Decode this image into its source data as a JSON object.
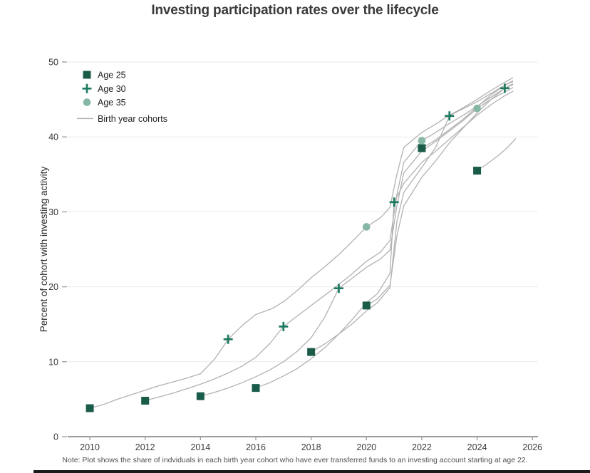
{
  "title": "Investing participation rates over the lifecycle",
  "note": "Note: Plot shows the share of indviduals in each birth year cohort who have ever transferred funds to an investing account starting at age 22.",
  "colors": {
    "age25": "#1a5c4a",
    "age30": "#1d7a61",
    "age35": "#86b7a4",
    "cohort_line": "#b3b1b1",
    "axis": "#9c9c9c",
    "grid": "#ebebeb",
    "tick_text": "#3c3c3c",
    "axis_label_text": "#2b2b2b"
  },
  "legend": {
    "items": [
      {
        "label": "Age 25",
        "marker": "square"
      },
      {
        "label": "Age 30",
        "marker": "plus"
      },
      {
        "label": "Age 35",
        "marker": "circle"
      },
      {
        "label": "Birth year cohorts",
        "marker": "line"
      }
    ]
  },
  "chart_data": {
    "type": "line",
    "title": "Investing participation rates over the lifecycle",
    "xlabel": "",
    "ylabel": "Percent of cohort with investing activity",
    "xlim": [
      2009.2,
      2026.2
    ],
    "ylim": [
      0,
      50
    ],
    "x_ticks": [
      2010,
      2012,
      2014,
      2016,
      2018,
      2020,
      2022,
      2024,
      2026
    ],
    "y_ticks": [
      0,
      10,
      20,
      30,
      40,
      50
    ],
    "grid": "horizontal",
    "legend_position": "top-left",
    "cohort_lines": [
      {
        "name": "cohort-1985",
        "points": [
          [
            2010,
            3.8
          ],
          [
            2010.5,
            4.3
          ],
          [
            2011,
            5.0
          ],
          [
            2011.5,
            5.6
          ],
          [
            2012,
            6.2
          ],
          [
            2012.5,
            6.8
          ],
          [
            2013,
            7.3
          ],
          [
            2013.5,
            7.8
          ],
          [
            2014,
            8.4
          ],
          [
            2014.5,
            10.3
          ],
          [
            2015,
            13.0
          ],
          [
            2015.5,
            14.8
          ],
          [
            2016,
            16.3
          ],
          [
            2016.6,
            17.1
          ],
          [
            2017,
            18.0
          ],
          [
            2017.5,
            19.5
          ],
          [
            2018,
            21.2
          ],
          [
            2018.5,
            22.7
          ],
          [
            2019,
            24.3
          ],
          [
            2019.5,
            26.1
          ],
          [
            2020,
            28.0
          ],
          [
            2020.5,
            29.2
          ],
          [
            2020.85,
            30.6
          ],
          [
            2021.1,
            35.0
          ],
          [
            2021.35,
            38.6
          ],
          [
            2022,
            40.6
          ],
          [
            2022.5,
            41.7
          ],
          [
            2023,
            42.9
          ],
          [
            2023.5,
            43.9
          ],
          [
            2024,
            45.0
          ],
          [
            2024.5,
            46.2
          ],
          [
            2025,
            47.3
          ],
          [
            2025.3,
            47.9
          ]
        ]
      },
      {
        "name": "cohort-1987",
        "points": [
          [
            2012,
            4.8
          ],
          [
            2012.5,
            5.3
          ],
          [
            2013,
            5.8
          ],
          [
            2013.5,
            6.4
          ],
          [
            2014,
            7.0
          ],
          [
            2014.5,
            7.7
          ],
          [
            2015,
            8.5
          ],
          [
            2015.5,
            9.4
          ],
          [
            2016,
            10.6
          ],
          [
            2016.5,
            12.4
          ],
          [
            2017,
            14.7
          ],
          [
            2017.5,
            16.1
          ],
          [
            2018,
            17.5
          ],
          [
            2018.5,
            18.9
          ],
          [
            2019,
            20.3
          ],
          [
            2019.5,
            21.8
          ],
          [
            2020,
            23.4
          ],
          [
            2020.5,
            24.6
          ],
          [
            2020.85,
            26.2
          ],
          [
            2021.1,
            32.3
          ],
          [
            2021.35,
            36.6
          ],
          [
            2022,
            39.5
          ],
          [
            2022.5,
            40.6
          ],
          [
            2023,
            41.8
          ],
          [
            2023.5,
            42.9
          ],
          [
            2024,
            44.1
          ],
          [
            2024.5,
            45.3
          ],
          [
            2025,
            46.5
          ],
          [
            2025.3,
            47.1
          ]
        ]
      },
      {
        "name": "cohort-1989",
        "points": [
          [
            2014,
            5.4
          ],
          [
            2014.5,
            5.9
          ],
          [
            2015,
            6.5
          ],
          [
            2015.5,
            7.2
          ],
          [
            2016,
            8.0
          ],
          [
            2016.5,
            8.9
          ],
          [
            2017,
            10.0
          ],
          [
            2017.5,
            11.4
          ],
          [
            2018,
            13.2
          ],
          [
            2018.5,
            16.0
          ],
          [
            2019,
            19.8
          ],
          [
            2019.5,
            21.2
          ],
          [
            2020,
            22.6
          ],
          [
            2020.5,
            23.7
          ],
          [
            2020.85,
            24.9
          ],
          [
            2021.1,
            30.8
          ],
          [
            2021.35,
            35.2
          ],
          [
            2022,
            38.1
          ],
          [
            2022.5,
            39.4
          ],
          [
            2023,
            40.8
          ],
          [
            2023.5,
            42.2
          ],
          [
            2024,
            43.8
          ],
          [
            2024.5,
            45.0
          ],
          [
            2025,
            46.0
          ],
          [
            2025.3,
            46.6
          ]
        ]
      },
      {
        "name": "cohort-1991",
        "points": [
          [
            2016,
            6.5
          ],
          [
            2016.5,
            7.2
          ],
          [
            2017,
            8.1
          ],
          [
            2017.5,
            9.1
          ],
          [
            2018,
            10.4
          ],
          [
            2018.5,
            11.9
          ],
          [
            2019,
            13.7
          ],
          [
            2019.5,
            15.7
          ],
          [
            2020,
            17.9
          ],
          [
            2020.4,
            19.1
          ],
          [
            2020.85,
            21.8
          ],
          [
            2021,
            31.3
          ],
          [
            2021.35,
            33.8
          ],
          [
            2022,
            36.6
          ],
          [
            2022.5,
            38.1
          ],
          [
            2023,
            39.7
          ],
          [
            2023.5,
            41.3
          ],
          [
            2024,
            42.9
          ],
          [
            2024.5,
            44.3
          ],
          [
            2025,
            45.5
          ],
          [
            2025.3,
            46.1
          ]
        ]
      },
      {
        "name": "cohort-1993",
        "points": [
          [
            2018,
            11.3
          ],
          [
            2018.5,
            12.4
          ],
          [
            2019,
            13.7
          ],
          [
            2019.5,
            15.1
          ],
          [
            2020,
            16.8
          ],
          [
            2020.4,
            17.9
          ],
          [
            2020.85,
            19.9
          ],
          [
            2021.1,
            28.7
          ],
          [
            2021.35,
            32.6
          ],
          [
            2022,
            35.9
          ],
          [
            2022.5,
            38.6
          ],
          [
            2023,
            42.8
          ],
          [
            2023.3,
            43.4
          ],
          [
            2024,
            44.7
          ],
          [
            2024.5,
            45.8
          ],
          [
            2025,
            46.9
          ],
          [
            2025.3,
            47.4
          ]
        ]
      },
      {
        "name": "cohort-1995",
        "points": [
          [
            2020,
            17.5
          ],
          [
            2020.4,
            18.4
          ],
          [
            2020.85,
            20.2
          ],
          [
            2021.1,
            26.8
          ],
          [
            2021.35,
            30.8
          ],
          [
            2022,
            34.6
          ],
          [
            2022.5,
            36.8
          ],
          [
            2023,
            39.2
          ],
          [
            2023.5,
            41.2
          ],
          [
            2024,
            43.2
          ],
          [
            2024.5,
            45.0
          ],
          [
            2025,
            46.5
          ],
          [
            2025.3,
            47.0
          ]
        ]
      },
      {
        "name": "cohort-1997",
        "points": [
          [
            2022,
            38.5
          ],
          [
            2022.5,
            39.6
          ],
          [
            2023,
            41.0
          ],
          [
            2023.5,
            42.4
          ],
          [
            2024,
            44.0
          ],
          [
            2024.5,
            45.6
          ],
          [
            2025,
            46.9
          ],
          [
            2025.3,
            47.5
          ]
        ]
      },
      {
        "name": "cohort-1999",
        "points": [
          [
            2024,
            35.5
          ],
          [
            2024.4,
            36.5
          ],
          [
            2024.8,
            37.6
          ],
          [
            2025.1,
            38.6
          ],
          [
            2025.4,
            39.8
          ]
        ]
      }
    ],
    "markers": [
      {
        "name": "Age 25",
        "shape": "square",
        "points": [
          [
            2010,
            3.8
          ],
          [
            2012,
            4.8
          ],
          [
            2014,
            5.4
          ],
          [
            2016,
            6.5
          ],
          [
            2018,
            11.3
          ],
          [
            2020,
            17.5
          ],
          [
            2022,
            38.5
          ],
          [
            2024,
            35.5
          ]
        ]
      },
      {
        "name": "Age 30",
        "shape": "plus",
        "points": [
          [
            2015,
            13.0
          ],
          [
            2017,
            14.7
          ],
          [
            2019,
            19.8
          ],
          [
            2021,
            31.3
          ],
          [
            2023,
            42.8
          ],
          [
            2025,
            46.5
          ]
        ]
      },
      {
        "name": "Age 35",
        "shape": "circle",
        "points": [
          [
            2020,
            28.0
          ],
          [
            2022,
            39.5
          ],
          [
            2024,
            43.8
          ]
        ]
      }
    ]
  }
}
